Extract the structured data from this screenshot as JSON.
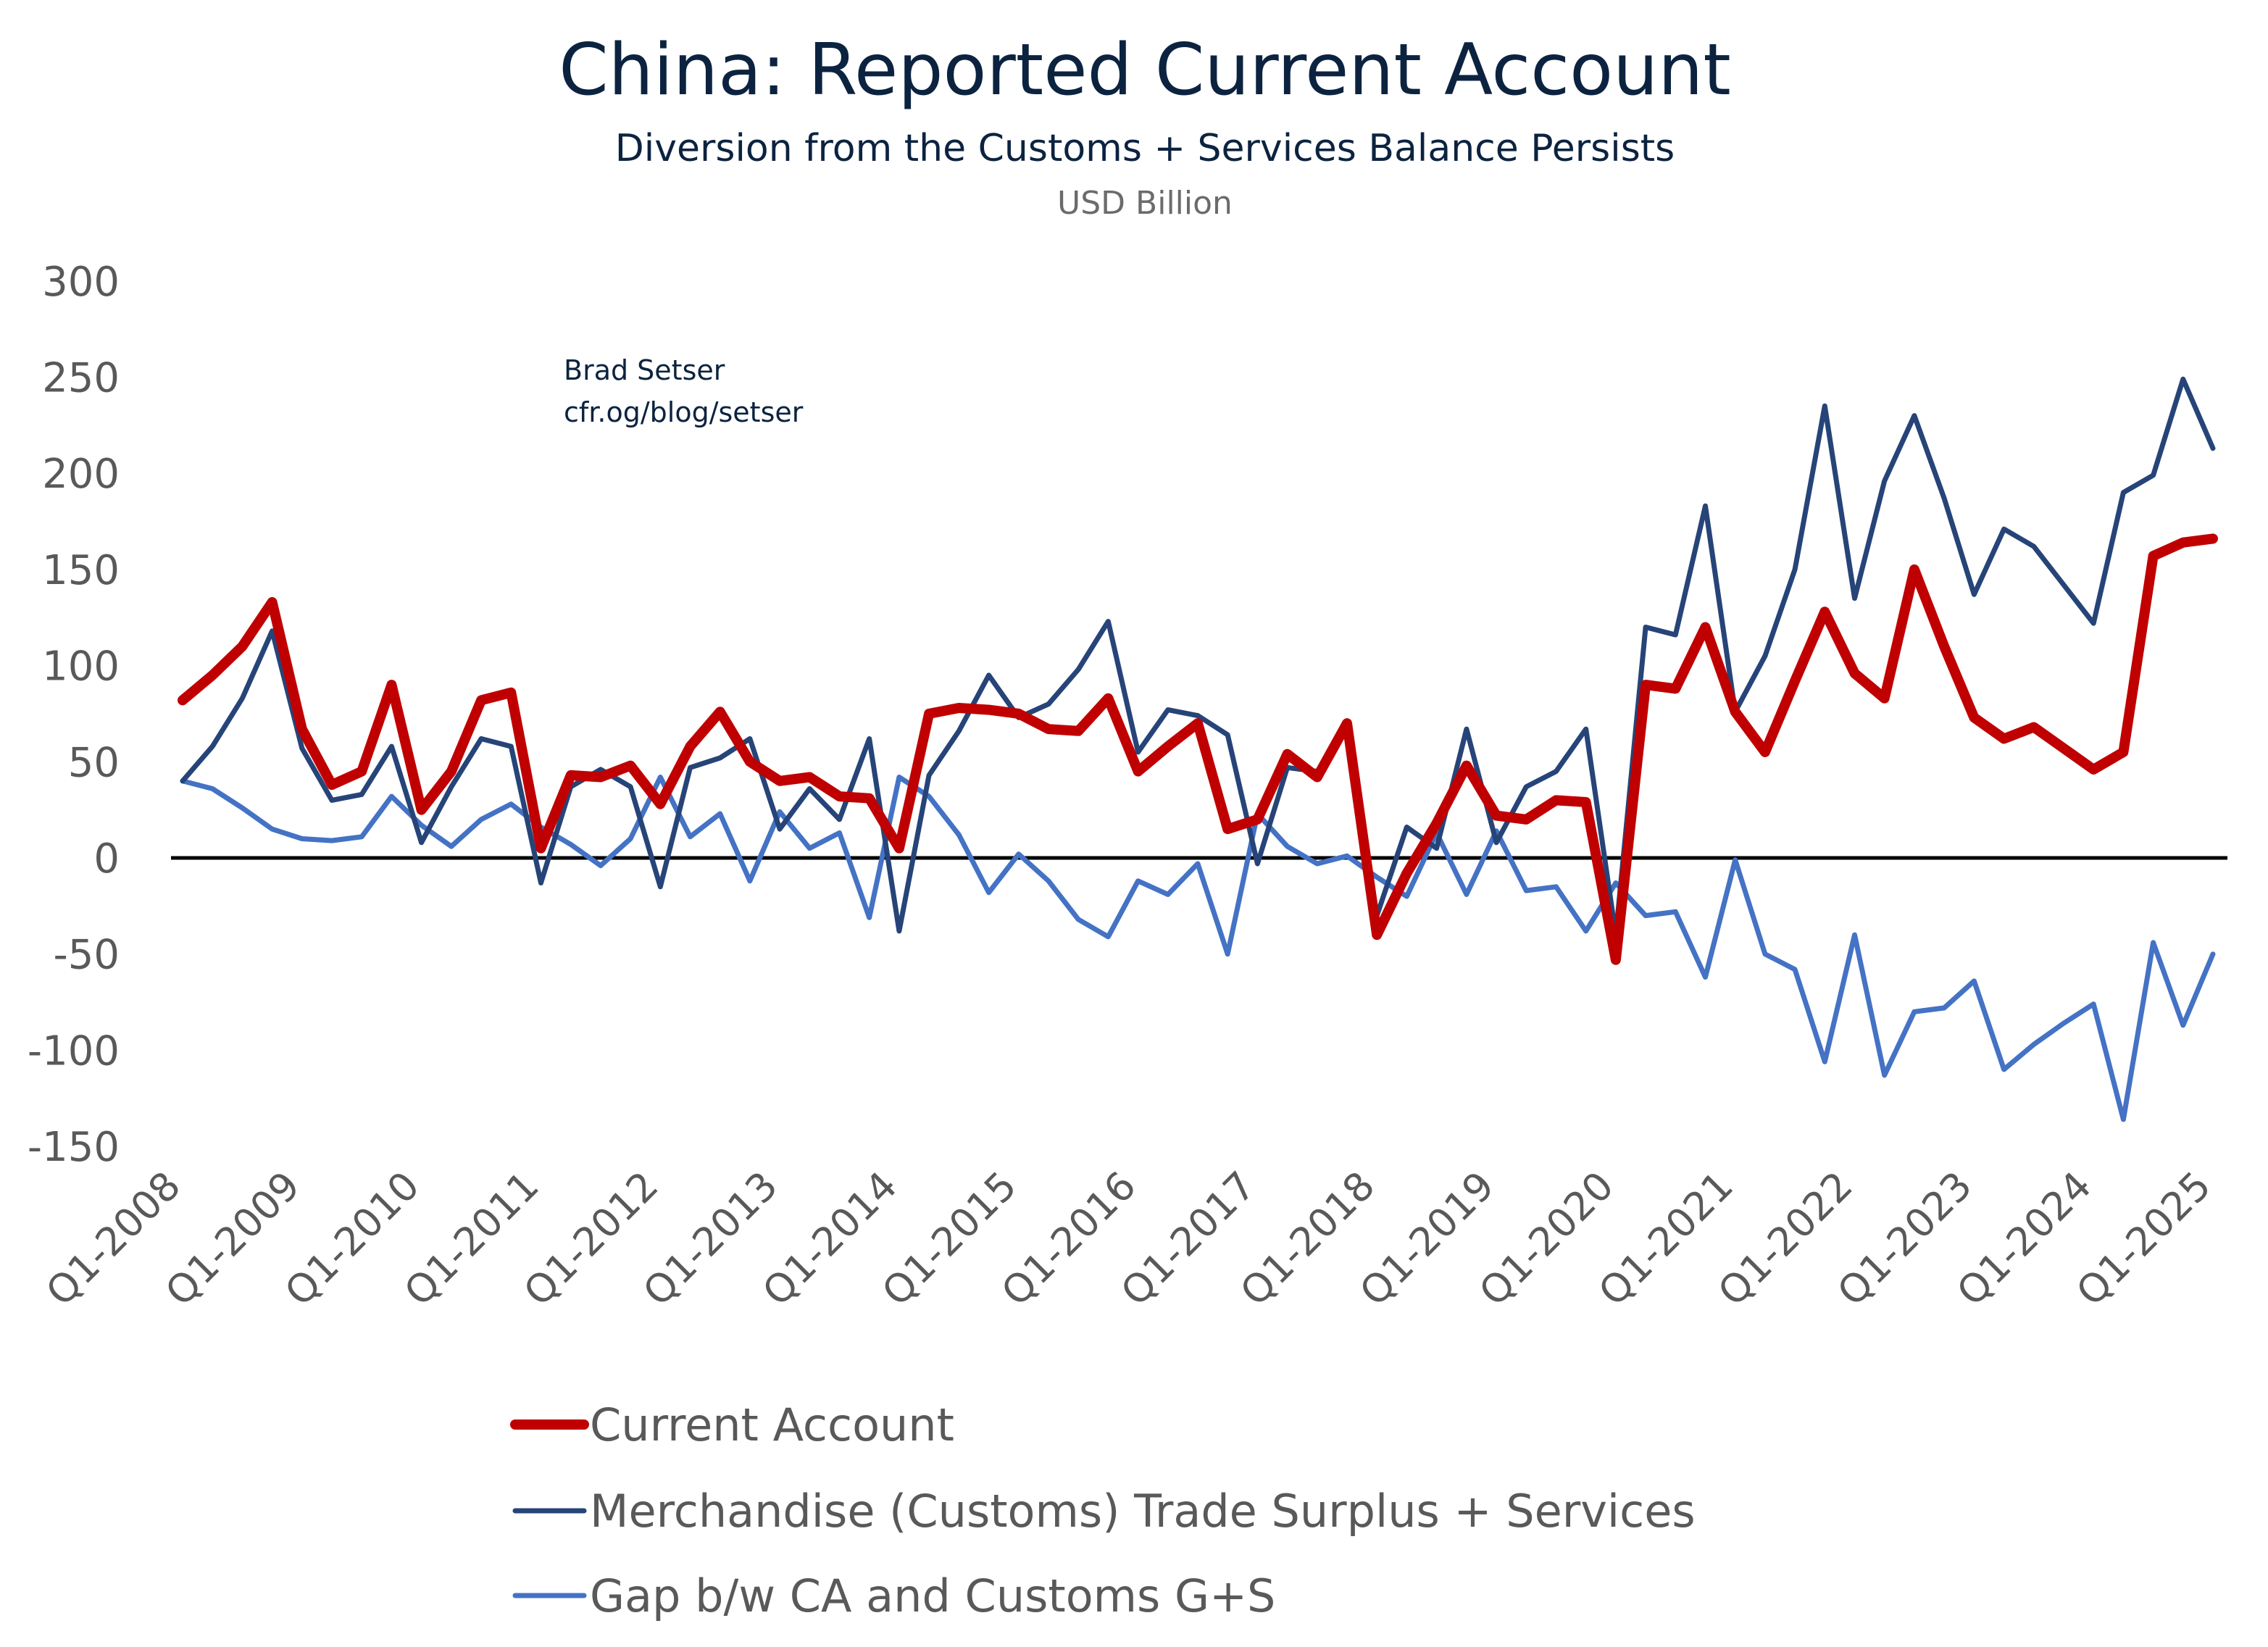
{
  "chart_data": {
    "type": "line",
    "title": "China: Reported Current Account",
    "subtitle": "Diversion from the Customs + Services Balance Persists",
    "ylabel": "USD Billion",
    "annotation": [
      "Brad Setser",
      "cfr.og/blog/setser"
    ],
    "ylim": [
      -150,
      300
    ],
    "yticks": [
      300,
      250,
      200,
      150,
      100,
      50,
      0,
      -50,
      -100,
      -150
    ],
    "xtick_labels": [
      "Q1-2008",
      "Q1-2009",
      "Q1-2010",
      "Q1-2011",
      "Q1-2012",
      "Q1-2013",
      "Q1-2014",
      "Q1-2015",
      "Q1-2016",
      "Q1-2017",
      "Q1-2018",
      "Q1-2019",
      "Q1-2020",
      "Q1-2021",
      "Q1-2022",
      "Q1-2023",
      "Q1-2024",
      "Q1-2025"
    ],
    "x_start": "Q1-2008",
    "x_end": "Q1-2025",
    "zero_line": true,
    "grid": false,
    "legend_position": "bottom",
    "series": [
      {
        "name": "Current Account",
        "color": "#c00000",
        "values": [
          82,
          95,
          110,
          133,
          67,
          38,
          45,
          90,
          25,
          45,
          82,
          86,
          5,
          43,
          42,
          48,
          28,
          58,
          76,
          50,
          40,
          42,
          32,
          31,
          5,
          75,
          78,
          77,
          75,
          67,
          66,
          83,
          45,
          58,
          70,
          15,
          20,
          54,
          42,
          70,
          -40,
          -8,
          18,
          48,
          22,
          20,
          30,
          29,
          -53,
          90,
          88,
          120,
          76,
          55,
          92,
          128,
          96,
          83,
          150,
          110,
          73,
          62,
          68,
          57,
          46,
          55,
          157,
          164,
          166
        ]
      },
      {
        "name": "Merchandise (Customs) Trade Surplus + Services",
        "color": "#264478",
        "values": [
          40,
          58,
          83,
          118,
          57,
          30,
          33,
          58,
          8,
          37,
          62,
          58,
          -13,
          37,
          46,
          37,
          -15,
          47,
          52,
          62,
          15,
          36,
          20,
          62,
          -38,
          43,
          66,
          95,
          73,
          80,
          98,
          123,
          55,
          77,
          74,
          64,
          -3,
          47,
          45,
          67,
          -30,
          16,
          5,
          67,
          8,
          37,
          45,
          67,
          -40,
          120,
          116,
          183,
          76,
          105,
          150,
          235,
          135,
          196,
          230,
          187,
          137,
          171,
          162,
          142,
          122,
          190,
          199,
          249,
          213
        ]
      },
      {
        "name": "Gap b/w CA and Customs G+S",
        "color": "#4472c4",
        "values": [
          40,
          36,
          26,
          15,
          10,
          9,
          11,
          32,
          17,
          6,
          20,
          28,
          16,
          7,
          -4,
          10,
          42,
          11,
          23,
          -12,
          24,
          5,
          13,
          -31,
          42,
          32,
          12,
          -18,
          2,
          -12,
          -32,
          -41,
          -12,
          -19,
          -3,
          -50,
          23,
          6,
          -3,
          1,
          -10,
          -20,
          13,
          -19,
          14,
          -17,
          -15,
          -38,
          -13,
          -30,
          -28,
          -62,
          -1,
          -50,
          -58,
          -106,
          -40,
          -113,
          -80,
          -78,
          -64,
          -110,
          -97,
          -86,
          -76,
          -136,
          -44,
          -87,
          -50
        ]
      }
    ]
  }
}
